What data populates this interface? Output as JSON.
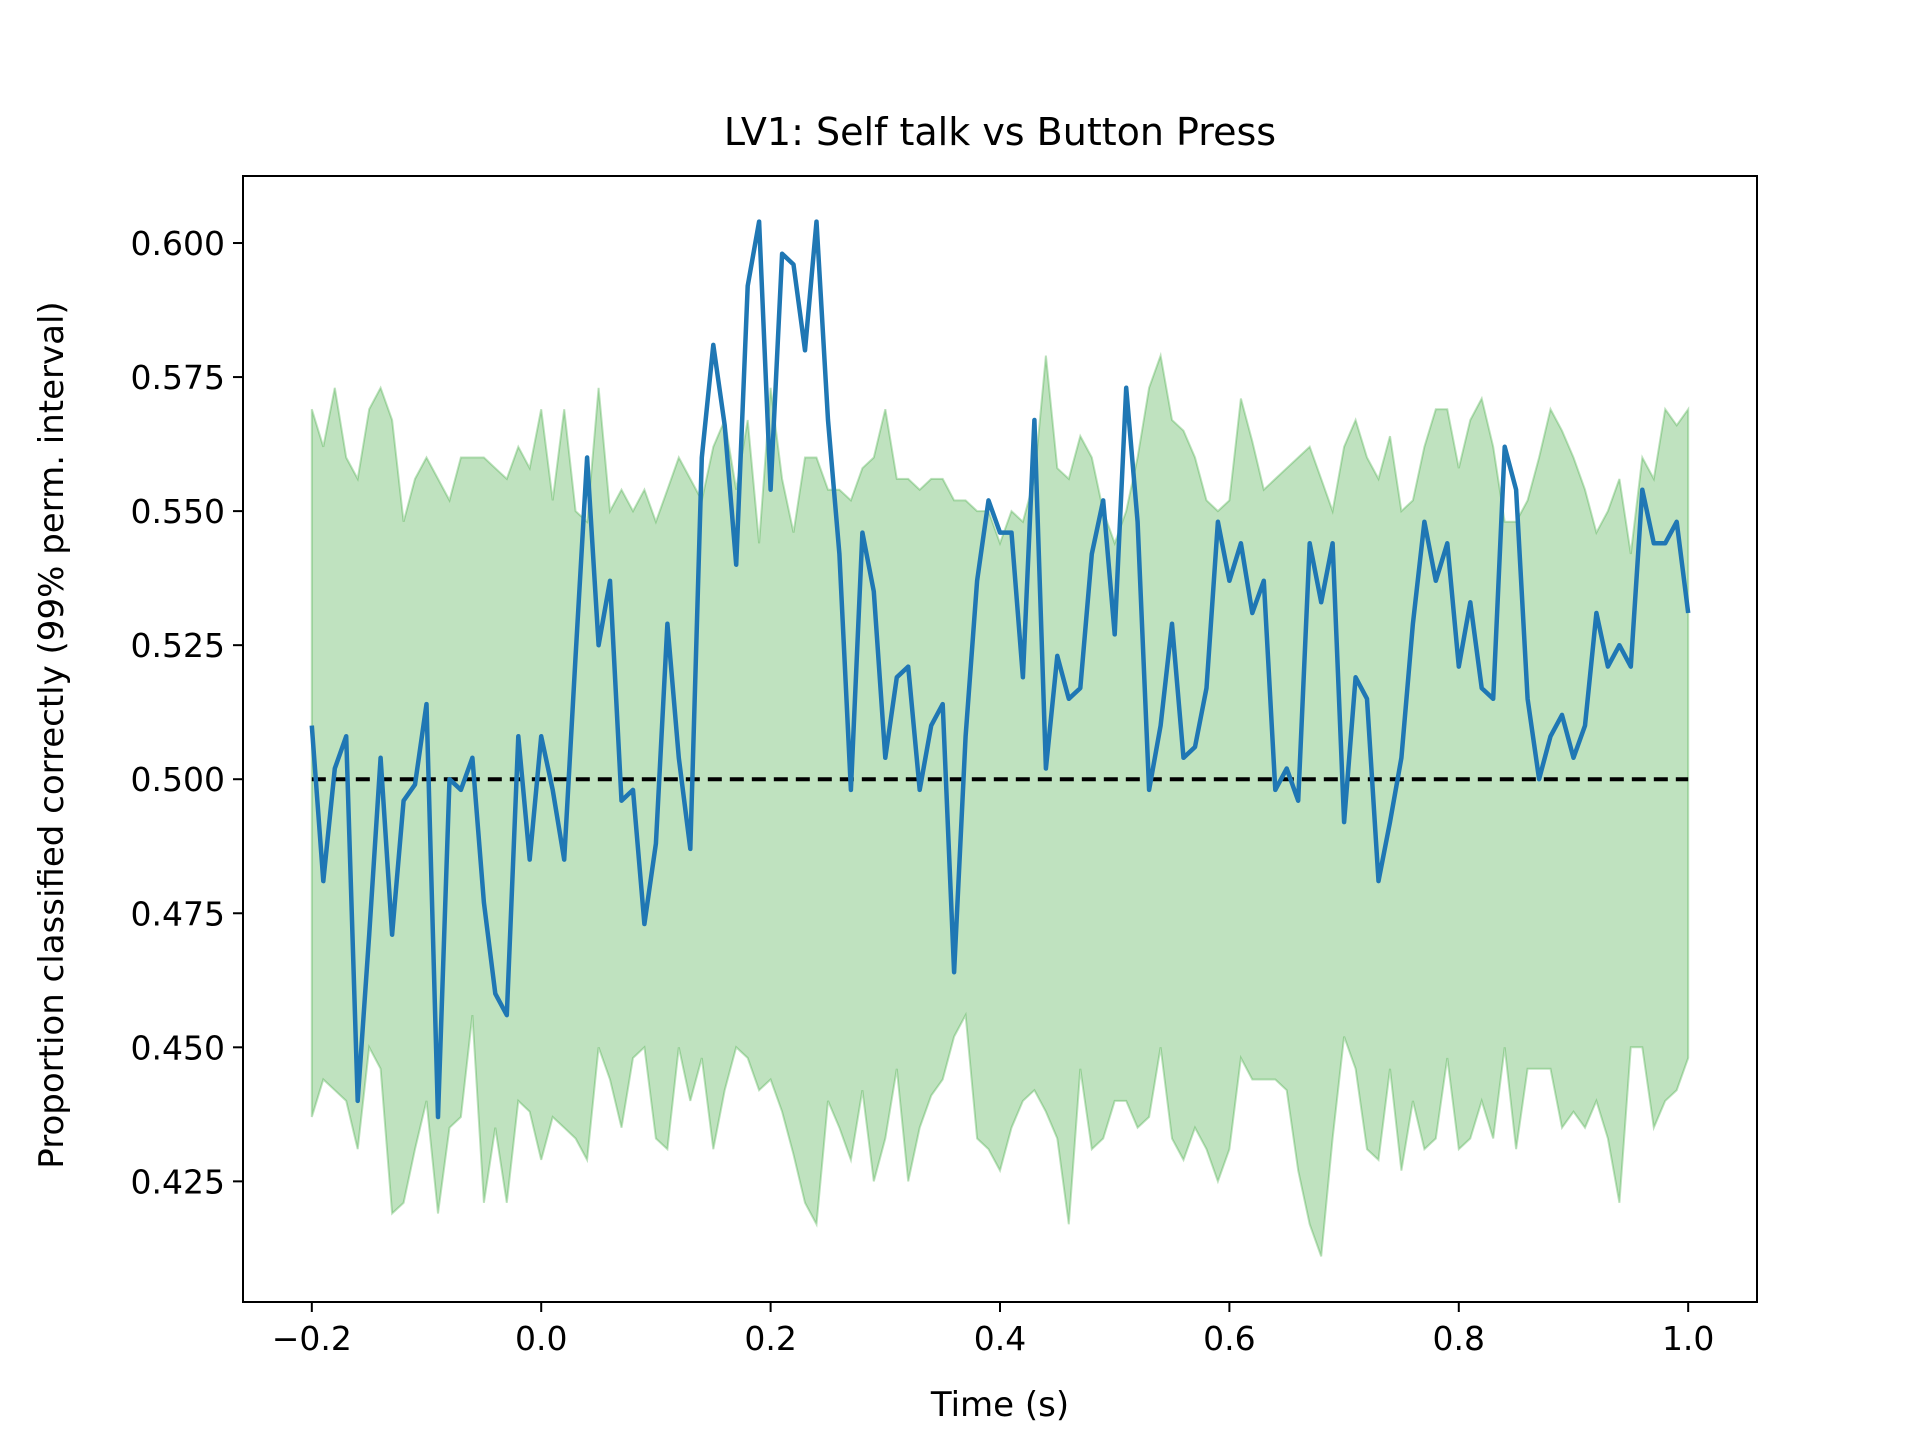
{
  "chart_data": {
    "type": "line",
    "title": "LV1: Self talk vs Button Press",
    "xlabel": "Time (s)",
    "ylabel": "Proportion classified correctly (99% perm. interval)",
    "xlim": [
      -0.26,
      1.06
    ],
    "ylim": [
      0.4025,
      0.6125
    ],
    "xticks": [
      -0.2,
      0.0,
      0.2,
      0.4,
      0.6,
      0.8,
      1.0
    ],
    "xtick_labels": [
      "−0.2",
      "0.0",
      "0.2",
      "0.4",
      "0.6",
      "0.8",
      "1.0"
    ],
    "yticks": [
      0.425,
      0.45,
      0.475,
      0.5,
      0.525,
      0.55,
      0.575,
      0.6
    ],
    "ytick_labels": [
      "0.425",
      "0.450",
      "0.475",
      "0.500",
      "0.525",
      "0.550",
      "0.575",
      "0.600"
    ],
    "grid": false,
    "colors": {
      "line": "#1f77b4",
      "band_fill": "#2ca02c",
      "band_edge": "#2ca02c",
      "chance": "#000000"
    },
    "chance_level": 0.5,
    "x": [
      -0.2,
      -0.19,
      -0.18,
      -0.17,
      -0.16,
      -0.15,
      -0.14,
      -0.13,
      -0.12,
      -0.11,
      -0.1,
      -0.09,
      -0.08,
      -0.07,
      -0.06,
      -0.05,
      -0.04,
      -0.03,
      -0.02,
      -0.01,
      0.0,
      0.01,
      0.02,
      0.03,
      0.04,
      0.05,
      0.06,
      0.07,
      0.08,
      0.09,
      0.1,
      0.11,
      0.12,
      0.13,
      0.14,
      0.15,
      0.16,
      0.17,
      0.18,
      0.19,
      0.2,
      0.21,
      0.22,
      0.23,
      0.24,
      0.25,
      0.26,
      0.27,
      0.28,
      0.29,
      0.3,
      0.31,
      0.32,
      0.33,
      0.34,
      0.35,
      0.36,
      0.37,
      0.38,
      0.39,
      0.4,
      0.41,
      0.42,
      0.43,
      0.44,
      0.45,
      0.46,
      0.47,
      0.48,
      0.49,
      0.5,
      0.51,
      0.52,
      0.53,
      0.54,
      0.55,
      0.56,
      0.57,
      0.58,
      0.59,
      0.6,
      0.61,
      0.62,
      0.63,
      0.64,
      0.65,
      0.66,
      0.67,
      0.68,
      0.69,
      0.7,
      0.71,
      0.72,
      0.73,
      0.74,
      0.75,
      0.76,
      0.77,
      0.78,
      0.79,
      0.8,
      0.81,
      0.82,
      0.83,
      0.84,
      0.85,
      0.86,
      0.87,
      0.88,
      0.89,
      0.9,
      0.91,
      0.92,
      0.93,
      0.94,
      0.95,
      0.96,
      0.97,
      0.98,
      0.99,
      1.0
    ],
    "series": [
      {
        "values": [
          0.51,
          0.481,
          0.502,
          0.508,
          0.44,
          0.471,
          0.504,
          0.471,
          0.496,
          0.499,
          0.514,
          0.437,
          0.5,
          0.498,
          0.504,
          0.477,
          0.46,
          0.456,
          0.508,
          0.485,
          0.508,
          0.498,
          0.485,
          0.523,
          0.56,
          0.525,
          0.537,
          0.496,
          0.498,
          0.473,
          0.488,
          0.529,
          0.504,
          0.487,
          0.56,
          0.581,
          0.566,
          0.54,
          0.592,
          0.604,
          0.554,
          0.598,
          0.596,
          0.58,
          0.604,
          0.567,
          0.542,
          0.498,
          0.546,
          0.535,
          0.504,
          0.519,
          0.521,
          0.498,
          0.51,
          0.514,
          0.464,
          0.508,
          0.537,
          0.552,
          0.546,
          0.546,
          0.519,
          0.567,
          0.502,
          0.523,
          0.515,
          0.517,
          0.542,
          0.552,
          0.527,
          0.573,
          0.548,
          0.498,
          0.51,
          0.529,
          0.504,
          0.506,
          0.517,
          0.548,
          0.537,
          0.544,
          0.531,
          0.537,
          0.498,
          0.502,
          0.496,
          0.544,
          0.533,
          0.544,
          0.492,
          0.519,
          0.515,
          0.481,
          0.492,
          0.504,
          0.529,
          0.548,
          0.537,
          0.544,
          0.521,
          0.533,
          0.517,
          0.515,
          0.562,
          0.554,
          0.515,
          0.5,
          0.508,
          0.512,
          0.504,
          0.51,
          0.531,
          0.521,
          0.525,
          0.521,
          0.554,
          0.544,
          0.544,
          0.548,
          0.531
        ]
      }
    ],
    "band": {
      "upper": [
        0.569,
        0.562,
        0.573,
        0.56,
        0.556,
        0.569,
        0.573,
        0.567,
        0.548,
        0.556,
        0.56,
        0.556,
        0.552,
        0.56,
        0.56,
        0.56,
        0.558,
        0.556,
        0.562,
        0.558,
        0.569,
        0.552,
        0.569,
        0.55,
        0.548,
        0.573,
        0.55,
        0.554,
        0.55,
        0.554,
        0.548,
        0.554,
        0.56,
        0.556,
        0.552,
        0.562,
        0.567,
        0.554,
        0.567,
        0.544,
        0.573,
        0.556,
        0.546,
        0.56,
        0.56,
        0.554,
        0.554,
        0.552,
        0.558,
        0.56,
        0.569,
        0.556,
        0.556,
        0.554,
        0.556,
        0.556,
        0.552,
        0.552,
        0.55,
        0.55,
        0.544,
        0.55,
        0.548,
        0.556,
        0.579,
        0.558,
        0.556,
        0.564,
        0.56,
        0.55,
        0.544,
        0.55,
        0.56,
        0.573,
        0.579,
        0.567,
        0.565,
        0.56,
        0.552,
        0.55,
        0.552,
        0.571,
        0.563,
        0.554,
        0.556,
        0.558,
        0.56,
        0.562,
        0.556,
        0.55,
        0.562,
        0.567,
        0.56,
        0.556,
        0.564,
        0.55,
        0.552,
        0.562,
        0.569,
        0.569,
        0.558,
        0.567,
        0.571,
        0.562,
        0.548,
        0.548,
        0.552,
        0.56,
        0.569,
        0.565,
        0.56,
        0.554,
        0.546,
        0.55,
        0.556,
        0.542,
        0.56,
        0.556,
        0.569,
        0.566,
        0.569
      ],
      "lower": [
        0.437,
        0.444,
        0.442,
        0.44,
        0.431,
        0.45,
        0.446,
        0.419,
        0.421,
        0.431,
        0.44,
        0.419,
        0.435,
        0.437,
        0.456,
        0.421,
        0.435,
        0.421,
        0.44,
        0.438,
        0.429,
        0.437,
        0.435,
        0.433,
        0.429,
        0.45,
        0.444,
        0.435,
        0.448,
        0.45,
        0.433,
        0.431,
        0.45,
        0.44,
        0.448,
        0.431,
        0.442,
        0.45,
        0.448,
        0.442,
        0.444,
        0.438,
        0.43,
        0.421,
        0.417,
        0.44,
        0.435,
        0.429,
        0.442,
        0.425,
        0.433,
        0.446,
        0.425,
        0.435,
        0.441,
        0.444,
        0.452,
        0.456,
        0.433,
        0.431,
        0.427,
        0.435,
        0.44,
        0.442,
        0.438,
        0.433,
        0.417,
        0.446,
        0.431,
        0.433,
        0.44,
        0.44,
        0.435,
        0.437,
        0.45,
        0.433,
        0.429,
        0.435,
        0.431,
        0.425,
        0.431,
        0.448,
        0.444,
        0.444,
        0.444,
        0.442,
        0.427,
        0.417,
        0.411,
        0.433,
        0.452,
        0.446,
        0.431,
        0.429,
        0.446,
        0.427,
        0.44,
        0.431,
        0.433,
        0.448,
        0.431,
        0.433,
        0.44,
        0.433,
        0.45,
        0.431,
        0.446,
        0.446,
        0.446,
        0.435,
        0.438,
        0.435,
        0.44,
        0.433,
        0.421,
        0.45,
        0.45,
        0.435,
        0.44,
        0.442,
        0.448
      ]
    }
  }
}
